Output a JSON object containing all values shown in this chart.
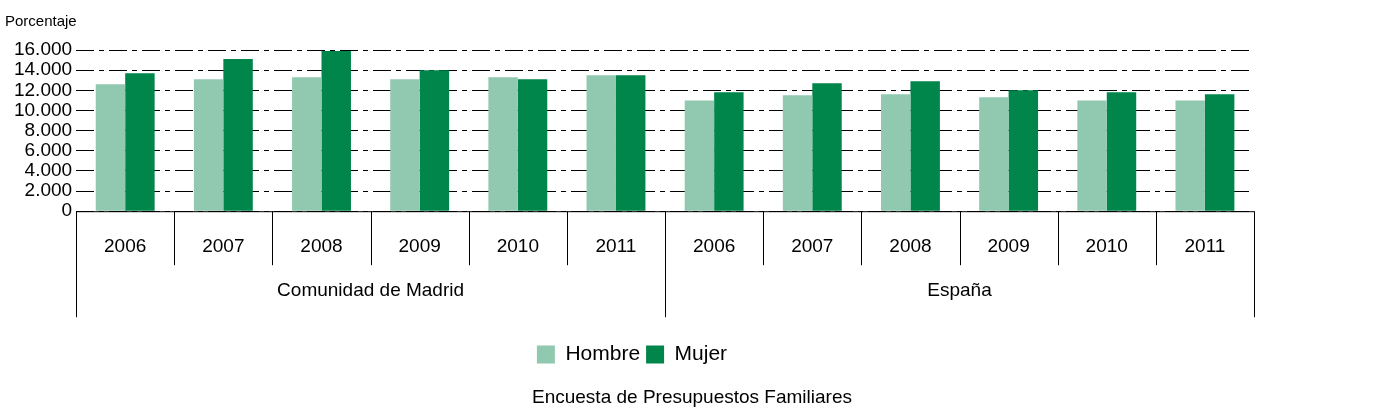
{
  "chart_data": {
    "type": "bar",
    "ylabel": "Porcentaje",
    "categories": [
      "2006",
      "2007",
      "2008",
      "2009",
      "2010",
      "2011",
      "2006",
      "2007",
      "2008",
      "2009",
      "2010",
      "2011"
    ],
    "series": [
      {
        "name": "Hombre",
        "color": "#91c9b0",
        "values": [
          12600,
          13100,
          13300,
          13100,
          13300,
          13500,
          11000,
          11500,
          11600,
          11300,
          11000,
          11000
        ]
      },
      {
        "name": "Mujer",
        "color": "#00854a",
        "values": [
          13700,
          15100,
          15900,
          14000,
          13100,
          13500,
          11800,
          12700,
          12900,
          12000,
          11800,
          11600
        ]
      }
    ],
    "ylim": [
      0,
      16000
    ],
    "yticks": [
      0,
      {
        "value": 2000,
        "label": "2.000"
      },
      {
        "value": 4000,
        "label": "4.000"
      },
      {
        "value": 6000,
        "label": "6.000"
      },
      {
        "value": 8000,
        "label": "8.000"
      },
      {
        "value": 10000,
        "label": "10.000"
      },
      {
        "value": 12000,
        "label": "12.000"
      },
      {
        "value": 14000,
        "label": "14.000"
      },
      {
        "value": 16000,
        "label": "16.000"
      }
    ],
    "grid": "y",
    "legend": "bottom",
    "annotations": [
      "Comunidad de Madrid",
      "España",
      "Encuesta de Presupuestos Familiares"
    ]
  }
}
